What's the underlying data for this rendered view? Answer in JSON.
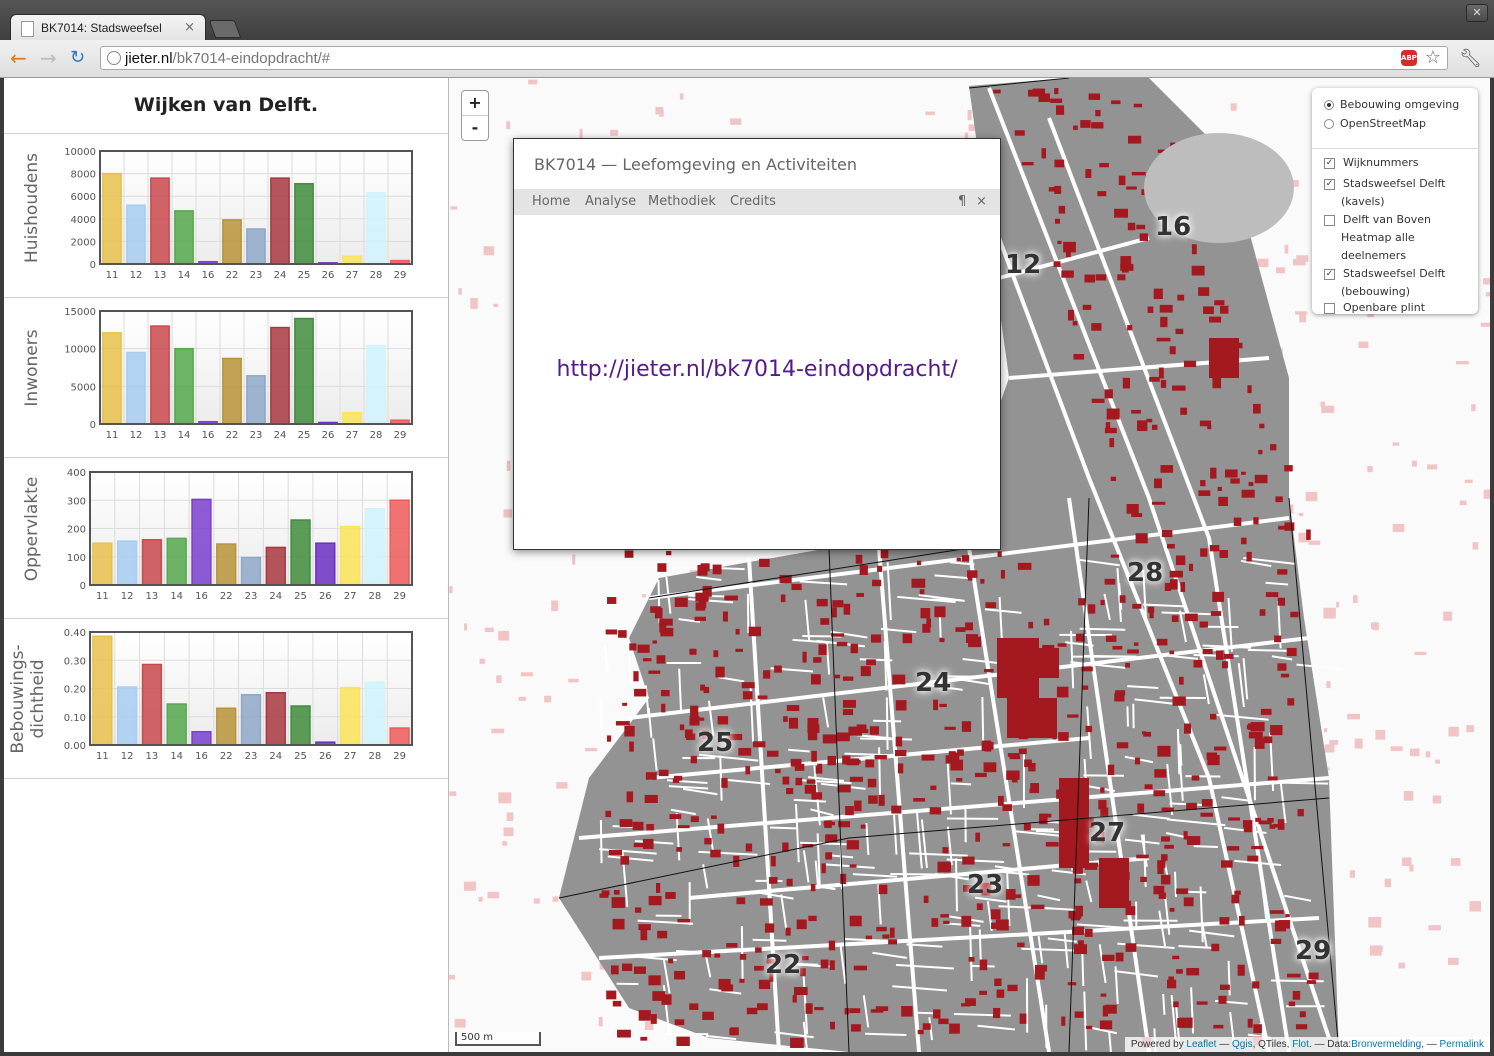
{
  "browser": {
    "tab_title": "BK7014: Stadsweefsel.",
    "tab_close": "×",
    "url_host": "jieter.nl",
    "url_path": "/bk7014-eindopdracht/#",
    "abp_label": "ABP",
    "win_close": "✕"
  },
  "sidebar": {
    "title": "Wijken van Delft.",
    "charts": [
      {
        "name": "huishoudens",
        "ylabel": "Huishoudens",
        "type": "bar",
        "categories": [
          "11",
          "12",
          "13",
          "14",
          "16",
          "22",
          "23",
          "24",
          "25",
          "26",
          "27",
          "28",
          "29"
        ],
        "values": [
          8000,
          5200,
          7600,
          4700,
          200,
          3900,
          3100,
          7600,
          7100,
          100,
          700,
          6300,
          300
        ],
        "yticks": [
          "0",
          "2000",
          "4000",
          "6000",
          "8000",
          "10000"
        ],
        "ylim": [
          0,
          10000
        ]
      },
      {
        "name": "inwoners",
        "ylabel": "Inwoners",
        "type": "bar",
        "categories": [
          "11",
          "12",
          "13",
          "14",
          "16",
          "22",
          "23",
          "24",
          "25",
          "26",
          "27",
          "28",
          "29"
        ],
        "values": [
          12100,
          9500,
          13000,
          10000,
          300,
          8700,
          6400,
          12800,
          14000,
          200,
          1500,
          10400,
          500
        ],
        "yticks": [
          "0",
          "5000",
          "10000",
          "15000"
        ],
        "ylim": [
          0,
          15000
        ]
      },
      {
        "name": "oppervlakte",
        "ylabel": "Oppervlakte",
        "type": "bar",
        "categories": [
          "11",
          "12",
          "13",
          "14",
          "16",
          "22",
          "23",
          "24",
          "25",
          "26",
          "27",
          "28",
          "29"
        ],
        "values": [
          148,
          155,
          160,
          165,
          303,
          145,
          97,
          133,
          230,
          148,
          207,
          270,
          300
        ],
        "yticks": [
          "0",
          "100",
          "200",
          "300",
          "400"
        ],
        "ylim": [
          0,
          400
        ]
      },
      {
        "name": "dichtheid",
        "ylabel": "Bebouwings-\ndichtheid",
        "type": "bar",
        "categories": [
          "11",
          "12",
          "13",
          "14",
          "16",
          "22",
          "23",
          "24",
          "25",
          "26",
          "27",
          "28",
          "29"
        ],
        "values": [
          0.385,
          0.205,
          0.285,
          0.145,
          0.047,
          0.13,
          0.178,
          0.185,
          0.138,
          0.01,
          0.203,
          0.222,
          0.06
        ],
        "yticks": [
          "0.00",
          "0.10",
          "0.20",
          "0.30",
          "0.40"
        ],
        "ylim": [
          0,
          0.4
        ]
      }
    ],
    "bar_colors": [
      "#e8c14c",
      "#a6cdf0",
      "#c9494c",
      "#55a84e",
      "#7a3fd0",
      "#b89337",
      "#8ea8c8",
      "#a8383f",
      "#3f8c3c",
      "#6b2fc4",
      "#fbe35a",
      "#d0f3fb",
      "#ef5a5a"
    ]
  },
  "map": {
    "zoom_in": "+",
    "zoom_out": "-",
    "popup": {
      "title": "BK7014 — Leefomgeving en Activiteiten",
      "nav": [
        "Home",
        "Analyse",
        "Methodiek",
        "Credits"
      ],
      "pilcrow": "¶",
      "close": "×",
      "link": "http://jieter.nl/bk7014-eindopdracht/"
    },
    "layers": {
      "base": [
        {
          "label": "Bebouwing omgeving",
          "selected": true
        },
        {
          "label": "OpenStreetMap",
          "selected": false
        }
      ],
      "overlays": [
        {
          "label": "Wijknummers",
          "checked": true
        },
        {
          "label": "Stadsweefsel Delft (kavels)",
          "checked": true
        },
        {
          "label": "Delft van Boven Heatmap alle deelnemers",
          "checked": false
        },
        {
          "label": "Stadsweefsel Delft (bebouwing)",
          "checked": true
        },
        {
          "label": "Openbare plint",
          "checked": false
        }
      ]
    },
    "wijk_labels": [
      "16",
      "12",
      "28",
      "24",
      "25",
      "27",
      "23",
      "22",
      "29"
    ],
    "scale": "500 m",
    "attribution": {
      "prefix": "Powered by",
      "leaflet": "Leaflet",
      "sep1": " — ",
      "qgis": "Qgis",
      "qtiles": ", QTiles, ",
      "flot": "Flot",
      "data": ". — Data:",
      "bron": "Bronvermelding",
      "sep2": ", — ",
      "permalink": "Permalink"
    }
  }
}
